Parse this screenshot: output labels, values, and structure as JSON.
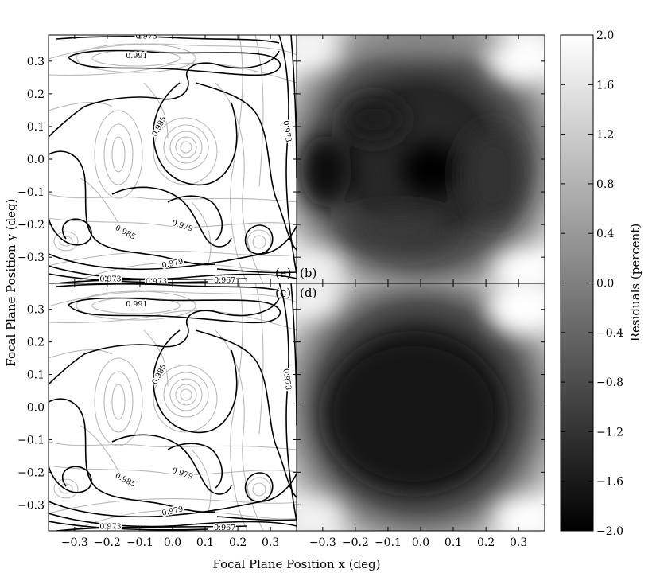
{
  "figure": {
    "xlabel": "Focal Plane Position x (deg)",
    "ylabel": "Focal Plane Position y (deg)",
    "colorbar_label": "Residuals (percent)",
    "panel_labels": [
      "(a)",
      "(b)",
      "(c)",
      "(d)"
    ]
  },
  "chart_data": [
    {
      "panel": "(a)",
      "type": "contour",
      "x_range": [
        -0.38,
        0.38
      ],
      "y_range": [
        -0.38,
        0.38
      ],
      "x_ticks": [
        -0.3,
        -0.2,
        -0.1,
        0.0,
        0.1,
        0.2,
        0.3
      ],
      "y_ticks": [
        -0.3,
        -0.2,
        -0.1,
        0.0,
        0.1,
        0.2,
        0.3
      ],
      "contour_labels": [
        {
          "text": "0.973",
          "x": -0.08,
          "y": 0.375,
          "angle": 0
        },
        {
          "text": "0.991",
          "x": -0.11,
          "y": 0.315,
          "angle": 0
        },
        {
          "text": "0.985",
          "x": -0.04,
          "y": 0.1,
          "angle": -62
        },
        {
          "text": "0.973",
          "x": 0.35,
          "y": 0.085,
          "angle": 82
        },
        {
          "text": "0.979",
          "x": 0.03,
          "y": -0.205,
          "angle": 18
        },
        {
          "text": "0.985",
          "x": -0.145,
          "y": -0.225,
          "angle": 28
        },
        {
          "text": "0.979",
          "x": 0.0,
          "y": -0.32,
          "angle": -12
        },
        {
          "text": "0.973",
          "x": -0.19,
          "y": -0.368,
          "angle": 0
        },
        {
          "text": "0.973",
          "x": -0.05,
          "y": -0.375,
          "angle": 0
        },
        {
          "text": "0.967",
          "x": 0.16,
          "y": -0.372,
          "angle": 0
        }
      ]
    },
    {
      "panel": "(b)",
      "type": "heatmap",
      "x_range": [
        -0.38,
        0.38
      ],
      "y_range": [
        -0.38,
        0.38
      ],
      "value_range": [
        -2.0,
        2.0
      ],
      "colormap": "gray"
    },
    {
      "panel": "(c)",
      "type": "contour",
      "x_range": [
        -0.38,
        0.38
      ],
      "y_range": [
        -0.38,
        0.38
      ],
      "x_ticks": [
        -0.3,
        -0.2,
        -0.1,
        0.0,
        0.1,
        0.2,
        0.3
      ],
      "y_ticks": [
        -0.3,
        -0.2,
        -0.1,
        0.0,
        0.1,
        0.2,
        0.3
      ],
      "contour_labels": [
        {
          "text": "0.991",
          "x": -0.11,
          "y": 0.315,
          "angle": 0
        },
        {
          "text": "0.985",
          "x": -0.04,
          "y": 0.1,
          "angle": -62
        },
        {
          "text": "0.973",
          "x": 0.35,
          "y": 0.085,
          "angle": 82
        },
        {
          "text": "0.979",
          "x": 0.03,
          "y": -0.205,
          "angle": 18
        },
        {
          "text": "0.985",
          "x": -0.145,
          "y": -0.225,
          "angle": 28
        },
        {
          "text": "0.979",
          "x": 0.0,
          "y": -0.32,
          "angle": -12
        },
        {
          "text": "0.973",
          "x": -0.19,
          "y": -0.368,
          "angle": 0
        },
        {
          "text": "0.967",
          "x": 0.16,
          "y": -0.372,
          "angle": 0
        }
      ]
    },
    {
      "panel": "(d)",
      "type": "heatmap",
      "x_range": [
        -0.38,
        0.38
      ],
      "y_range": [
        -0.38,
        0.38
      ],
      "value_range": [
        -2.0,
        2.0
      ],
      "colormap": "gray"
    },
    {
      "panel": "colorbar",
      "type": "colorbar",
      "range": [
        -2.0,
        2.0
      ],
      "ticks": [
        -2.0,
        -1.6,
        -1.2,
        -0.8,
        -0.4,
        0.0,
        0.4,
        0.8,
        1.2,
        1.6,
        2.0
      ],
      "tick_labels": [
        "−2.0",
        "−1.6",
        "−1.2",
        "−0.8",
        "−0.4",
        "0.0",
        "0.4",
        "0.8",
        "1.2",
        "1.6",
        "2.0"
      ]
    }
  ],
  "x_tick_labels": [
    "−0.3",
    "−0.2",
    "−0.1",
    "0.0",
    "0.1",
    "0.2",
    "0.3"
  ],
  "y_tick_labels": [
    "−0.3",
    "−0.2",
    "−0.1",
    "0.0",
    "0.1",
    "0.2",
    "0.3"
  ]
}
